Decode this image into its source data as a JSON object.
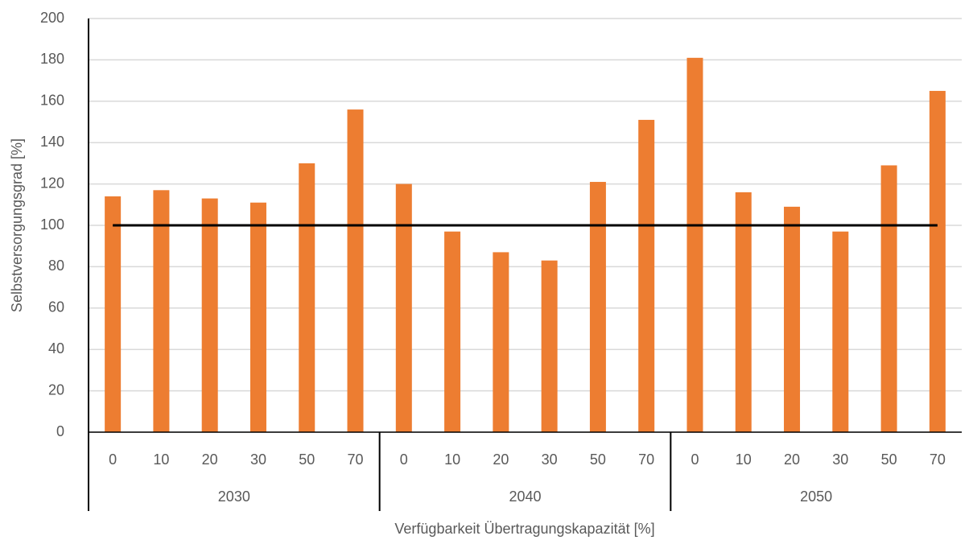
{
  "chart_data": {
    "type": "bar",
    "y_label": "Selbstversorgungsgrad [%]",
    "x_label": "Verfügbarkeit Übertragungskapazität [%]",
    "categories": [
      "0",
      "10",
      "20",
      "30",
      "50",
      "70",
      "0",
      "10",
      "20",
      "30",
      "50",
      "70",
      "0",
      "10",
      "20",
      "30",
      "50",
      "70"
    ],
    "group_labels": [
      "2030",
      "2040",
      "2050"
    ],
    "values": [
      114,
      117,
      113,
      111,
      130,
      156,
      120,
      97,
      87,
      83,
      121,
      151,
      181,
      116,
      109,
      97,
      129,
      165
    ],
    "color": "#ed7d31",
    "reference_line": 100,
    "ylim": [
      0,
      200
    ],
    "yticks": [
      0,
      20,
      40,
      60,
      80,
      100,
      120,
      140,
      160,
      180,
      200
    ],
    "grid": true
  }
}
